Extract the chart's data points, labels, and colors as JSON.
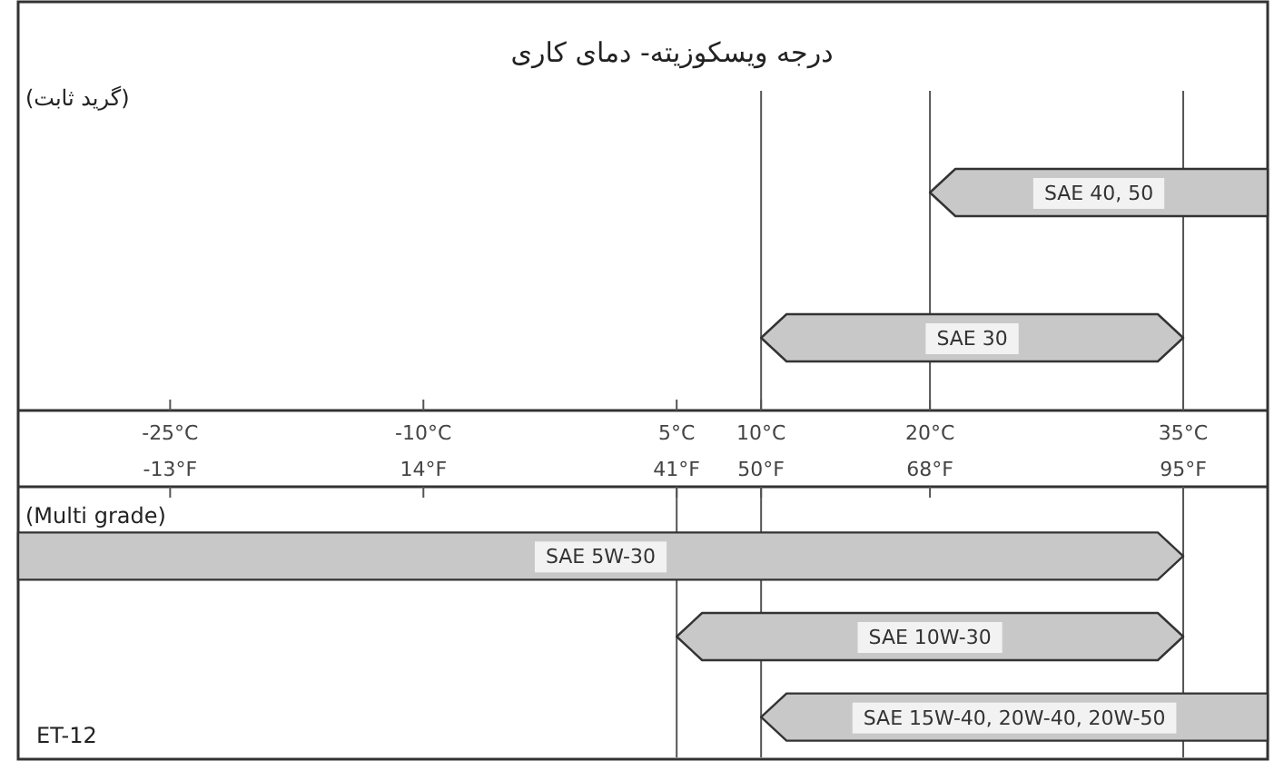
{
  "chart_data": [
    {
      "type": "bar",
      "orientation": "horizontal",
      "title": "درجه ویسکوزیته- دمای کاری",
      "categories": [
        "SAE 40, 50",
        "SAE 30"
      ],
      "base": [
        20,
        10
      ],
      "values": [
        20,
        25
      ],
      "color": "#c8c8c8",
      "xlim": [
        -34,
        40
      ],
      "xticks": [
        {
          "value": -25,
          "label": "-25°C"
        },
        {
          "value": -10,
          "label": "-10°C"
        },
        {
          "value": 5,
          "label": "5°C"
        },
        {
          "value": 10,
          "label": "10°C"
        },
        {
          "value": 20,
          "label": "20°C"
        },
        {
          "value": 35,
          "label": "35°C"
        }
      ],
      "legend": false,
      "ref_lines": [
        {
          "axis": "x",
          "value": 10,
          "color": "#555555"
        },
        {
          "axis": "x",
          "value": 20,
          "color": "#555555"
        },
        {
          "axis": "x",
          "value": 35,
          "color": "#555555"
        }
      ],
      "annotations": [
        "(گرید ثابت)"
      ]
    },
    {
      "type": "bar",
      "orientation": "horizontal",
      "categories": [
        "SAE 5W-30",
        "SAE 10W-30",
        "SAE 15W-40, 20W-40, 20W-50"
      ],
      "base": [
        -34,
        5,
        10
      ],
      "values": [
        69,
        30,
        30
      ],
      "color": "#c8c8c8",
      "xlim": [
        -34,
        40
      ],
      "tick_labels": "x2",
      "x2lim": [
        -29.2,
        104
      ],
      "x2ticks": [
        {
          "value": -13,
          "label": "-13°F"
        },
        {
          "value": 14,
          "label": "14°F"
        },
        {
          "value": 41,
          "label": "41°F"
        },
        {
          "value": 50,
          "label": "50°F"
        },
        {
          "value": 68,
          "label": "68°F"
        },
        {
          "value": 95,
          "label": "95°F"
        }
      ],
      "ref_lines": [
        {
          "axis": "x",
          "value": 5,
          "color": "#555555"
        },
        {
          "axis": "x",
          "value": 10,
          "color": "#555555"
        },
        {
          "axis": "x",
          "value": 35,
          "color": "#555555"
        }
      ],
      "annotations": [
        "(Multi grade)",
        "ET-12"
      ],
      "legend": false
    }
  ]
}
